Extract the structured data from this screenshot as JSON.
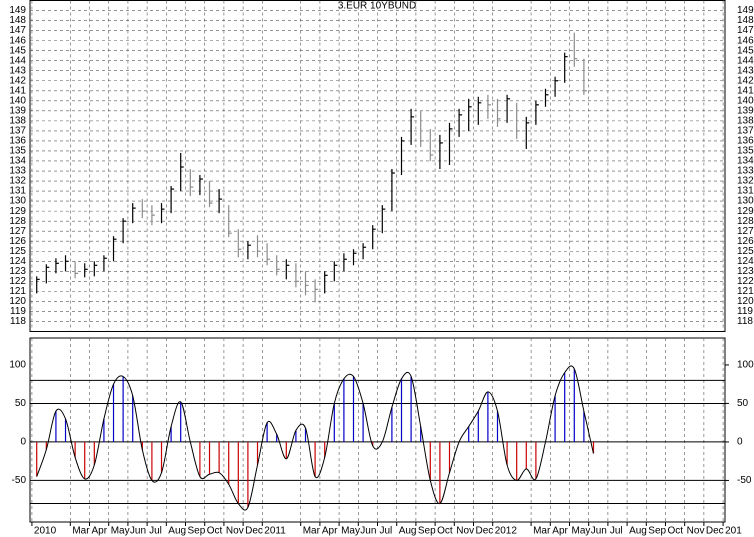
{
  "chart_data": [
    {
      "type": "ohlc",
      "title": "3.EUR 10YBUND",
      "x": [
        0.25,
        0.75,
        1.25,
        1.75,
        2.25,
        2.75,
        3.25,
        3.75,
        4.25,
        4.75,
        5.25,
        5.75,
        6.25,
        6.75,
        7.25,
        7.75,
        8.25,
        8.75,
        9.25,
        9.75,
        10.25,
        10.75,
        11.25,
        11.75,
        12.25,
        12.75,
        13.25,
        13.75,
        14.25,
        14.75,
        15.25,
        15.75,
        16.25,
        16.75,
        17.25,
        17.75,
        18.25,
        18.75,
        19.25,
        19.75,
        20.25,
        20.75,
        21.25,
        21.75,
        22.25,
        22.75,
        23.25,
        23.75,
        24.25,
        24.75,
        25.25,
        25.75,
        26.25,
        26.75,
        27.25,
        27.75,
        28.25,
        28.75
      ],
      "high": [
        122.5,
        123.7,
        124.3,
        124.6,
        124,
        123.8,
        124,
        124.6,
        126.5,
        128.3,
        129.8,
        130.2,
        129.6,
        129.8,
        131.5,
        134.8,
        133.2,
        132.6,
        132,
        131.2,
        129.6,
        127.2,
        126,
        126.6,
        125.8,
        124.6,
        124.2,
        123.8,
        123,
        122.2,
        123,
        124,
        124.8,
        125.2,
        125.8,
        127.6,
        129.6,
        133.2,
        136.4,
        139.2,
        139,
        137.2,
        136.6,
        137.8,
        139.2,
        140.2,
        140.4,
        140.6,
        140.2,
        140.6,
        139.8,
        138.4,
        140,
        141.2,
        142.4,
        144.8,
        146.8,
        144.2
      ],
      "low": [
        120.8,
        121.8,
        122.8,
        123,
        122.3,
        122.4,
        122.5,
        123,
        124,
        125.8,
        127.8,
        128.3,
        127.6,
        127.8,
        128.8,
        131,
        130.5,
        130.6,
        129.4,
        128.8,
        126.4,
        124.4,
        124.2,
        124.4,
        123.6,
        122.6,
        122.2,
        121.4,
        120.6,
        119.9,
        120.8,
        122,
        123,
        123.6,
        124.2,
        125.2,
        126.8,
        129,
        132.6,
        135.6,
        135.4,
        134,
        133.2,
        133.6,
        136.4,
        137,
        137.6,
        138.2,
        137.4,
        137.8,
        136.2,
        135.2,
        137.6,
        139.4,
        140.4,
        141.8,
        143.4,
        140.6
      ],
      "close": [
        122.2,
        123.4,
        123.8,
        124,
        122.8,
        123.2,
        123.6,
        124.3,
        126.2,
        128,
        129.3,
        129,
        128.6,
        129.2,
        131.2,
        133.4,
        131.4,
        132.2,
        129.8,
        130.2,
        126.8,
        125.2,
        125.6,
        125,
        124.2,
        123.2,
        123.6,
        122,
        121.6,
        121.2,
        122.6,
        123.6,
        124.2,
        124.8,
        125.4,
        127.2,
        129.2,
        132.8,
        136,
        138.4,
        136,
        134.6,
        135.8,
        137.2,
        138.6,
        139.4,
        139.8,
        139.6,
        138.2,
        140.2,
        137,
        137.8,
        139.6,
        140.6,
        142,
        144.4,
        144.2,
        141
      ],
      "color": "#000000",
      "down_color": "#8c8c8c",
      "xlim": [
        -0.1,
        36.1
      ],
      "ylim": [
        117,
        150
      ],
      "yticks": [
        118,
        119,
        120,
        121,
        122,
        123,
        124,
        125,
        126,
        127,
        128,
        129,
        130,
        131,
        132,
        133,
        134,
        135,
        136,
        137,
        138,
        139,
        140,
        141,
        142,
        143,
        144,
        145,
        146,
        147,
        148,
        149
      ],
      "grid": true
    },
    {
      "type": "oscillator",
      "x": [
        0.25,
        0.75,
        1.25,
        1.75,
        2.25,
        2.75,
        3.25,
        3.75,
        4.25,
        4.75,
        5.25,
        5.75,
        6.25,
        6.75,
        7.25,
        7.75,
        8.25,
        8.75,
        9.25,
        9.75,
        10.25,
        10.75,
        11.25,
        11.75,
        12.25,
        12.75,
        13.25,
        13.75,
        14.25,
        14.75,
        15.25,
        15.75,
        16.25,
        16.75,
        17.25,
        17.75,
        18.25,
        18.75,
        19.25,
        19.75,
        20.25,
        20.75,
        21.25,
        21.75,
        22.25,
        22.75,
        23.25,
        23.75,
        24.25,
        24.75,
        25.25,
        25.75,
        26.25,
        26.75,
        27.25,
        27.75,
        28.25,
        28.75,
        29.25
      ],
      "values": [
        -45,
        -10,
        40,
        30,
        -20,
        -48,
        -30,
        30,
        75,
        85,
        60,
        -10,
        -50,
        -40,
        20,
        52,
        0,
        -45,
        -42,
        -40,
        -55,
        -80,
        -85,
        -30,
        25,
        10,
        -22,
        15,
        18,
        -45,
        -20,
        50,
        82,
        85,
        50,
        -5,
        0,
        45,
        82,
        85,
        20,
        -50,
        -80,
        -40,
        0,
        20,
        40,
        65,
        40,
        -30,
        -50,
        -35,
        -48,
        0,
        60,
        90,
        95,
        40,
        -15
      ],
      "up_color": "#0000c8",
      "down_color": "#c80000",
      "line_color": "#000000",
      "levels": [
        80,
        50,
        0,
        -50,
        -80
      ],
      "xlim": [
        -0.1,
        36.1
      ],
      "ylim": [
        -104,
        135
      ],
      "yticks": [
        -50,
        0,
        50,
        100
      ],
      "xticks": [
        {
          "value": 0,
          "label": "2010"
        },
        {
          "value": 2,
          "label": "Mar"
        },
        {
          "value": 3,
          "label": "Apr"
        },
        {
          "value": 4,
          "label": "May"
        },
        {
          "value": 5,
          "label": "Jun"
        },
        {
          "value": 6,
          "label": "Jul"
        },
        {
          "value": 7,
          "label": "Aug"
        },
        {
          "value": 8,
          "label": "Sep"
        },
        {
          "value": 9,
          "label": "Oct"
        },
        {
          "value": 10,
          "label": "Nov"
        },
        {
          "value": 11,
          "label": "Dec"
        },
        {
          "value": 12,
          "label": "2011"
        },
        {
          "value": 14,
          "label": "Mar"
        },
        {
          "value": 15,
          "label": "Apr"
        },
        {
          "value": 16,
          "label": "May"
        },
        {
          "value": 17,
          "label": "Jun"
        },
        {
          "value": 18,
          "label": "Jul"
        },
        {
          "value": 19,
          "label": "Aug"
        },
        {
          "value": 20,
          "label": "Sep"
        },
        {
          "value": 21,
          "label": "Oct"
        },
        {
          "value": 22,
          "label": "Nov"
        },
        {
          "value": 23,
          "label": "Dec"
        },
        {
          "value": 24,
          "label": "2012"
        },
        {
          "value": 26,
          "label": "Mar"
        },
        {
          "value": 27,
          "label": "Apr"
        },
        {
          "value": 28,
          "label": "May"
        },
        {
          "value": 29,
          "label": "Jun"
        },
        {
          "value": 30,
          "label": "Jul"
        },
        {
          "value": 31,
          "label": "Aug"
        },
        {
          "value": 32,
          "label": "Sep"
        },
        {
          "value": 33,
          "label": "Oct"
        },
        {
          "value": 34,
          "label": "Nov"
        },
        {
          "value": 35,
          "label": "Dec"
        },
        {
          "value": 36,
          "label": "201"
        }
      ],
      "grid": true
    }
  ]
}
